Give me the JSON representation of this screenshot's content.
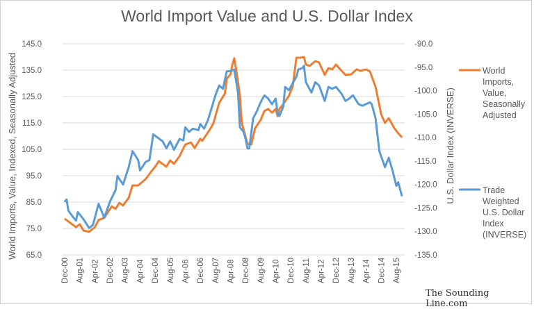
{
  "chart_data": {
    "type": "line",
    "title": "World Import Value and U.S. Dollar Index",
    "ylabel": "World Imports, Value, Indexed, Seasonally Adjusted",
    "y2label": "U.S. Dollar Index (INVERSE)",
    "ylim": [
      65,
      145
    ],
    "y2lim": [
      -135,
      -90
    ],
    "yticks": [
      "145.0",
      "135.0",
      "125.0",
      "115.0",
      "105.0",
      "95.0",
      "85.0",
      "75.0",
      "65.0"
    ],
    "y2ticks": [
      "-90.0",
      "-95.0",
      "-100.0",
      "-105.0",
      "-110.0",
      "-115.0",
      "-120.0",
      "-125.0",
      "-130.0",
      "-135.0"
    ],
    "xticks": [
      "Dec-00",
      "Aug-01",
      "Apr-02",
      "Dec-02",
      "Aug-03",
      "Apr-04",
      "Dec-04",
      "Aug-05",
      "Apr-06",
      "Dec-06",
      "Aug-07",
      "Apr-08",
      "Dec-08",
      "Aug-09",
      "Apr-10",
      "Dec-10",
      "Aug-11",
      "Apr-12",
      "Dec-12",
      "Aug-13",
      "Apr-14",
      "Dec-14",
      "Aug-15"
    ],
    "grid": true,
    "legend": "right",
    "series": [
      {
        "name": "World Imports, Value, Seasonally Adjusted",
        "legend_lines": [
          "World",
          "Imports,",
          "Value,",
          "Seasonally",
          "Adjusted"
        ],
        "axis": "left",
        "color": "#ED7D31",
        "points": [
          [
            "2000-12",
            78.7
          ],
          [
            "2001-06",
            75.5
          ],
          [
            "2001-08",
            76.6
          ],
          [
            "2001-10",
            74.2
          ],
          [
            "2002-01",
            73.7
          ],
          [
            "2002-04",
            75.5
          ],
          [
            "2002-06",
            78.2
          ],
          [
            "2002-09",
            79.0
          ],
          [
            "2003-01",
            83.4
          ],
          [
            "2003-03",
            82.4
          ],
          [
            "2003-05",
            84.7
          ],
          [
            "2003-07",
            83.7
          ],
          [
            "2003-10",
            86.6
          ],
          [
            "2003-12",
            91.3
          ],
          [
            "2004-03",
            91.3
          ],
          [
            "2004-07",
            93.7
          ],
          [
            "2004-10",
            96.6
          ],
          [
            "2004-12",
            98.4
          ],
          [
            "2005-02",
            100.5
          ],
          [
            "2005-06",
            98.4
          ],
          [
            "2005-08",
            100.8
          ],
          [
            "2005-10",
            99.5
          ],
          [
            "2006-01",
            102.4
          ],
          [
            "2006-04",
            106.8
          ],
          [
            "2006-07",
            107.6
          ],
          [
            "2006-09",
            105.5
          ],
          [
            "2006-12",
            109.0
          ],
          [
            "2007-01",
            108.2
          ],
          [
            "2007-05",
            112.4
          ],
          [
            "2007-07",
            115.0
          ],
          [
            "2007-10",
            122.6
          ],
          [
            "2008-01",
            126.1
          ],
          [
            "2008-02",
            131.8
          ],
          [
            "2008-04",
            133.4
          ],
          [
            "2008-05",
            137.1
          ],
          [
            "2008-06",
            139.5
          ],
          [
            "2008-07",
            135.3
          ],
          [
            "2008-09",
            125.5
          ],
          [
            "2008-10",
            115.0
          ],
          [
            "2008-11",
            112.4
          ],
          [
            "2009-01",
            107.1
          ],
          [
            "2009-03",
            106.8
          ],
          [
            "2009-04",
            109.7
          ],
          [
            "2009-05",
            112.9
          ],
          [
            "2009-08",
            116.1
          ],
          [
            "2009-10",
            119.5
          ],
          [
            "2009-12",
            120.3
          ],
          [
            "2010-02",
            118.9
          ],
          [
            "2010-04",
            120.3
          ],
          [
            "2010-05",
            117.6
          ],
          [
            "2010-06",
            120.3
          ],
          [
            "2010-08",
            122.1
          ],
          [
            "2010-11",
            125.3
          ],
          [
            "2011-01",
            128.7
          ],
          [
            "2011-03",
            139.7
          ],
          [
            "2011-05",
            139.7
          ],
          [
            "2011-07",
            140.0
          ],
          [
            "2011-08",
            137.1
          ],
          [
            "2011-10",
            136.6
          ],
          [
            "2012-01",
            138.4
          ],
          [
            "2012-03",
            137.9
          ],
          [
            "2012-06",
            133.2
          ],
          [
            "2012-08",
            135.8
          ],
          [
            "2012-10",
            135.3
          ],
          [
            "2012-12",
            137.1
          ],
          [
            "2013-03",
            134.7
          ],
          [
            "2013-05",
            133.2
          ],
          [
            "2013-08",
            133.4
          ],
          [
            "2013-11",
            135.3
          ],
          [
            "2014-01",
            134.7
          ],
          [
            "2014-04",
            135.3
          ],
          [
            "2014-06",
            134.5
          ],
          [
            "2014-09",
            128.7
          ],
          [
            "2014-12",
            118.2
          ],
          [
            "2015-02",
            115.0
          ],
          [
            "2015-04",
            116.8
          ],
          [
            "2015-07",
            112.9
          ],
          [
            "2015-09",
            111.1
          ],
          [
            "2015-11",
            109.5
          ]
        ]
      },
      {
        "name": "Trade Weighted U.S. Dollar Index (INVERSE)",
        "legend_lines": [
          "Trade",
          "Weighted",
          "U.S. Dollar",
          "Index",
          "(INVERSE)"
        ],
        "axis": "right",
        "color": "#5B9BD5",
        "points": [
          [
            "2000-12",
            -123.7
          ],
          [
            "2001-01",
            -123.2
          ],
          [
            "2001-02",
            -125.6
          ],
          [
            "2001-04",
            -126.7
          ],
          [
            "2001-06",
            -127.7
          ],
          [
            "2001-07",
            -125.9
          ],
          [
            "2001-10",
            -127.4
          ],
          [
            "2002-01",
            -129.3
          ],
          [
            "2002-03",
            -128.6
          ],
          [
            "2002-06",
            -124.1
          ],
          [
            "2002-09",
            -127.1
          ],
          [
            "2002-12",
            -123.7
          ],
          [
            "2003-03",
            -121.2
          ],
          [
            "2003-04",
            -118.2
          ],
          [
            "2003-07",
            -120.0
          ],
          [
            "2003-10",
            -116.3
          ],
          [
            "2003-12",
            -112.9
          ],
          [
            "2004-03",
            -114.8
          ],
          [
            "2004-04",
            -117.0
          ],
          [
            "2004-07",
            -115.2
          ],
          [
            "2004-09",
            -114.8
          ],
          [
            "2004-11",
            -109.3
          ],
          [
            "2005-01",
            -109.9
          ],
          [
            "2005-04",
            -110.8
          ],
          [
            "2005-06",
            -112.3
          ],
          [
            "2005-08",
            -110.8
          ],
          [
            "2005-10",
            -112.6
          ],
          [
            "2006-01",
            -110.3
          ],
          [
            "2006-03",
            -110.6
          ],
          [
            "2006-04",
            -107.8
          ],
          [
            "2006-06",
            -108.8
          ],
          [
            "2006-08",
            -108.1
          ],
          [
            "2006-11",
            -108.4
          ],
          [
            "2006-12",
            -107.1
          ],
          [
            "2007-02",
            -108.1
          ],
          [
            "2007-04",
            -106.3
          ],
          [
            "2007-06",
            -103.7
          ],
          [
            "2007-08",
            -101.0
          ],
          [
            "2007-10",
            -98.9
          ],
          [
            "2007-12",
            -99.6
          ],
          [
            "2008-02",
            -95.9
          ],
          [
            "2008-04",
            -95.8
          ],
          [
            "2008-06",
            -95.5
          ],
          [
            "2008-08",
            -100.4
          ],
          [
            "2008-09",
            -107.8
          ],
          [
            "2008-11",
            -108.8
          ],
          [
            "2008-12",
            -110.3
          ],
          [
            "2009-01",
            -112.3
          ],
          [
            "2009-02",
            -112.3
          ],
          [
            "2009-04",
            -105.9
          ],
          [
            "2009-06",
            -104.4
          ],
          [
            "2009-08",
            -102.5
          ],
          [
            "2009-10",
            -101.0
          ],
          [
            "2009-12",
            -101.7
          ],
          [
            "2010-02",
            -102.9
          ],
          [
            "2010-04",
            -101.7
          ],
          [
            "2010-05",
            -104.8
          ],
          [
            "2010-06",
            -105.4
          ],
          [
            "2010-08",
            -103.4
          ],
          [
            "2010-09",
            -99.2
          ],
          [
            "2010-11",
            -99.9
          ],
          [
            "2011-03",
            -97.0
          ],
          [
            "2011-04",
            -95.5
          ],
          [
            "2011-06",
            -95.2
          ],
          [
            "2011-07",
            -94.7
          ],
          [
            "2011-08",
            -98.2
          ],
          [
            "2011-11",
            -100.4
          ],
          [
            "2012-01",
            -98.2
          ],
          [
            "2012-03",
            -98.9
          ],
          [
            "2012-06",
            -102.2
          ],
          [
            "2012-08",
            -99.2
          ],
          [
            "2012-10",
            -99.6
          ],
          [
            "2012-12",
            -99.2
          ],
          [
            "2013-03",
            -100.7
          ],
          [
            "2013-05",
            -102.2
          ],
          [
            "2013-07",
            -101.7
          ],
          [
            "2013-09",
            -101.0
          ],
          [
            "2013-12",
            -102.9
          ],
          [
            "2014-02",
            -103.2
          ],
          [
            "2014-06",
            -102.5
          ],
          [
            "2014-07",
            -102.9
          ],
          [
            "2014-09",
            -105.9
          ],
          [
            "2014-11",
            -112.9
          ],
          [
            "2015-02",
            -116.3
          ],
          [
            "2015-04",
            -114.3
          ],
          [
            "2015-06",
            -117.0
          ],
          [
            "2015-08",
            -120.3
          ],
          [
            "2015-09",
            -119.5
          ],
          [
            "2015-11",
            -122.5
          ]
        ]
      }
    ]
  },
  "watermark": "The Sounding Line.com"
}
